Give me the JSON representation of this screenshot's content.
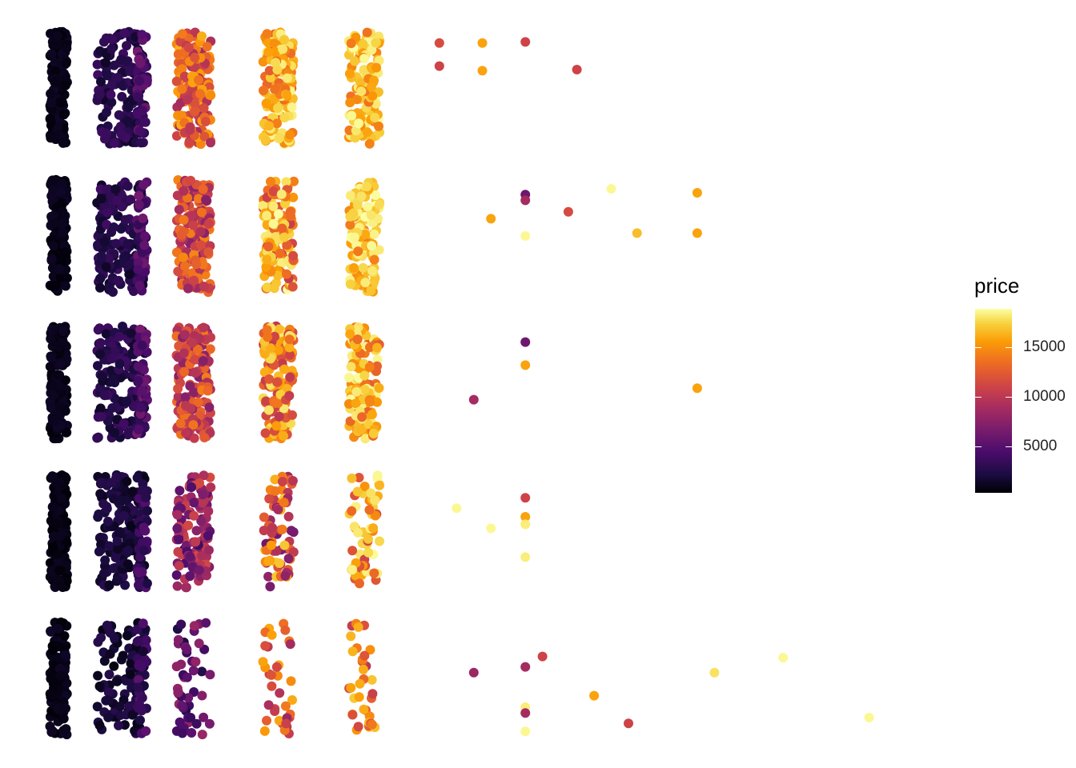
{
  "chart_data": {
    "type": "scatter",
    "title": "",
    "xlabel": "",
    "ylabel": "",
    "grid": false,
    "axes_visible": false,
    "legend": {
      "title": "price",
      "type": "colorbar",
      "position": "right",
      "breaks": [
        5000,
        10000,
        15000
      ],
      "break_labels": [
        "5000",
        "10000",
        "15000"
      ],
      "range": [
        326,
        18823
      ],
      "palette": "inferno",
      "colors": [
        "#000004",
        "#1b0c41",
        "#4a0c6b",
        "#781c6d",
        "#a52c60",
        "#cf4446",
        "#ed6925",
        "#fb9b06",
        "#f7d13d",
        "#fcffa4"
      ]
    },
    "x_range": [
      0.2,
      5.3
    ],
    "y_groups": 5,
    "jitter": {
      "x": 0.08,
      "y": 0.4
    },
    "series": [
      {
        "group": 1,
        "clusters": [
          {
            "x": 0.25,
            "count": 160,
            "price": [
              500,
              1500
            ]
          },
          {
            "x": 0.55,
            "count": 160,
            "price": [
              1500,
              4000
            ]
          },
          {
            "x": 0.75,
            "count": 40,
            "price": [
              3000,
              6500
            ]
          },
          {
            "x": 1.0,
            "count": 170,
            "price": [
              8500,
              15500
            ]
          },
          {
            "x": 1.5,
            "count": 140,
            "price": [
              12000,
              18800
            ]
          },
          {
            "x": 2.0,
            "count": 120,
            "price": [
              13000,
              18800
            ]
          }
        ],
        "points": [
          {
            "x": 2.5,
            "y": 0.78,
            "price": 11000
          },
          {
            "x": 2.75,
            "y": 0.78,
            "price": 15000
          },
          {
            "x": 3.0,
            "y": 0.8,
            "price": 10500
          },
          {
            "x": 2.5,
            "y": 0.38,
            "price": 10500
          },
          {
            "x": 2.75,
            "y": 0.3,
            "price": 15000
          },
          {
            "x": 3.3,
            "y": 0.32,
            "price": 10500
          }
        ]
      },
      {
        "group": 2,
        "clusters": [
          {
            "x": 0.25,
            "count": 160,
            "price": [
              500,
              1500
            ]
          },
          {
            "x": 0.55,
            "count": 160,
            "price": [
              1500,
              4000
            ]
          },
          {
            "x": 0.75,
            "count": 40,
            "price": [
              3000,
              6500
            ]
          },
          {
            "x": 1.0,
            "count": 170,
            "price": [
              7000,
              14000
            ]
          },
          {
            "x": 1.5,
            "count": 140,
            "price": [
              10000,
              18800
            ]
          },
          {
            "x": 2.0,
            "count": 130,
            "price": [
              13000,
              18800
            ]
          }
        ],
        "points": [
          {
            "x": 3.5,
            "y": 0.82,
            "price": 18500
          },
          {
            "x": 4.0,
            "y": 0.75,
            "price": 15000
          },
          {
            "x": 3.0,
            "y": 0.72,
            "price": 6000
          },
          {
            "x": 3.0,
            "y": 0.62,
            "price": 8500
          },
          {
            "x": 3.25,
            "y": 0.42,
            "price": 11000
          },
          {
            "x": 3.65,
            "y": 0.05,
            "price": 16000
          },
          {
            "x": 4.0,
            "y": 0.05,
            "price": 15000
          },
          {
            "x": 3.0,
            "y": 0.0,
            "price": 18500
          },
          {
            "x": 2.8,
            "y": 0.3,
            "price": 15000
          }
        ]
      },
      {
        "group": 3,
        "clusters": [
          {
            "x": 0.25,
            "count": 160,
            "price": [
              500,
              1500
            ]
          },
          {
            "x": 0.55,
            "count": 160,
            "price": [
              1500,
              4000
            ]
          },
          {
            "x": 0.75,
            "count": 40,
            "price": [
              3000,
              6500
            ]
          },
          {
            "x": 1.0,
            "count": 170,
            "price": [
              7000,
              13500
            ]
          },
          {
            "x": 1.5,
            "count": 140,
            "price": [
              9500,
              18000
            ]
          },
          {
            "x": 2.0,
            "count": 130,
            "price": [
              12000,
              18800
            ]
          }
        ],
        "points": [
          {
            "x": 3.0,
            "y": 0.7,
            "price": 6000
          },
          {
            "x": 3.0,
            "y": 0.3,
            "price": 15000
          },
          {
            "x": 4.0,
            "y": -0.1,
            "price": 15000
          },
          {
            "x": 2.7,
            "y": -0.3,
            "price": 8500
          }
        ]
      },
      {
        "group": 4,
        "clusters": [
          {
            "x": 0.25,
            "count": 160,
            "price": [
              400,
              1300
            ]
          },
          {
            "x": 0.55,
            "count": 160,
            "price": [
              1000,
              3000
            ]
          },
          {
            "x": 0.75,
            "count": 40,
            "price": [
              2000,
              5000
            ]
          },
          {
            "x": 1.0,
            "count": 120,
            "price": [
              4000,
              11000
            ]
          },
          {
            "x": 1.5,
            "count": 70,
            "price": [
              6000,
              16500
            ]
          },
          {
            "x": 2.0,
            "count": 60,
            "price": [
              10000,
              18800
            ]
          }
        ],
        "points": [
          {
            "x": 3.0,
            "y": 0.58,
            "price": 10500
          },
          {
            "x": 3.0,
            "y": 0.25,
            "price": 15000
          },
          {
            "x": 3.0,
            "y": 0.12,
            "price": 18000
          },
          {
            "x": 2.8,
            "y": 0.05,
            "price": 18500
          },
          {
            "x": 3.0,
            "y": -0.45,
            "price": 18000
          },
          {
            "x": 2.6,
            "y": 0.4,
            "price": 18500
          }
        ]
      },
      {
        "group": 5,
        "clusters": [
          {
            "x": 0.25,
            "count": 110,
            "price": [
              400,
              1500
            ]
          },
          {
            "x": 0.55,
            "count": 100,
            "price": [
              800,
              3000
            ]
          },
          {
            "x": 0.75,
            "count": 35,
            "price": [
              1800,
              5500
            ]
          },
          {
            "x": 1.0,
            "count": 50,
            "price": [
              2500,
              8000
            ]
          },
          {
            "x": 1.5,
            "count": 35,
            "price": [
              8000,
              15500
            ]
          },
          {
            "x": 2.0,
            "count": 35,
            "price": [
              9000,
              16500
            ]
          }
        ],
        "points": [
          {
            "x": 3.1,
            "y": 0.38,
            "price": 10500
          },
          {
            "x": 3.0,
            "y": 0.2,
            "price": 8500
          },
          {
            "x": 3.4,
            "y": -0.3,
            "price": 15000
          },
          {
            "x": 3.0,
            "y": -0.5,
            "price": 18000
          },
          {
            "x": 3.0,
            "y": -0.6,
            "price": 8500
          },
          {
            "x": 3.6,
            "y": -0.78,
            "price": 10500
          },
          {
            "x": 3.0,
            "y": -0.92,
            "price": 18500
          },
          {
            "x": 4.1,
            "y": 0.1,
            "price": 17500
          },
          {
            "x": 4.5,
            "y": 0.36,
            "price": 18500
          },
          {
            "x": 5.0,
            "y": -0.68,
            "price": 18500
          },
          {
            "x": 2.7,
            "y": 0.1,
            "price": 8000
          }
        ]
      }
    ]
  }
}
